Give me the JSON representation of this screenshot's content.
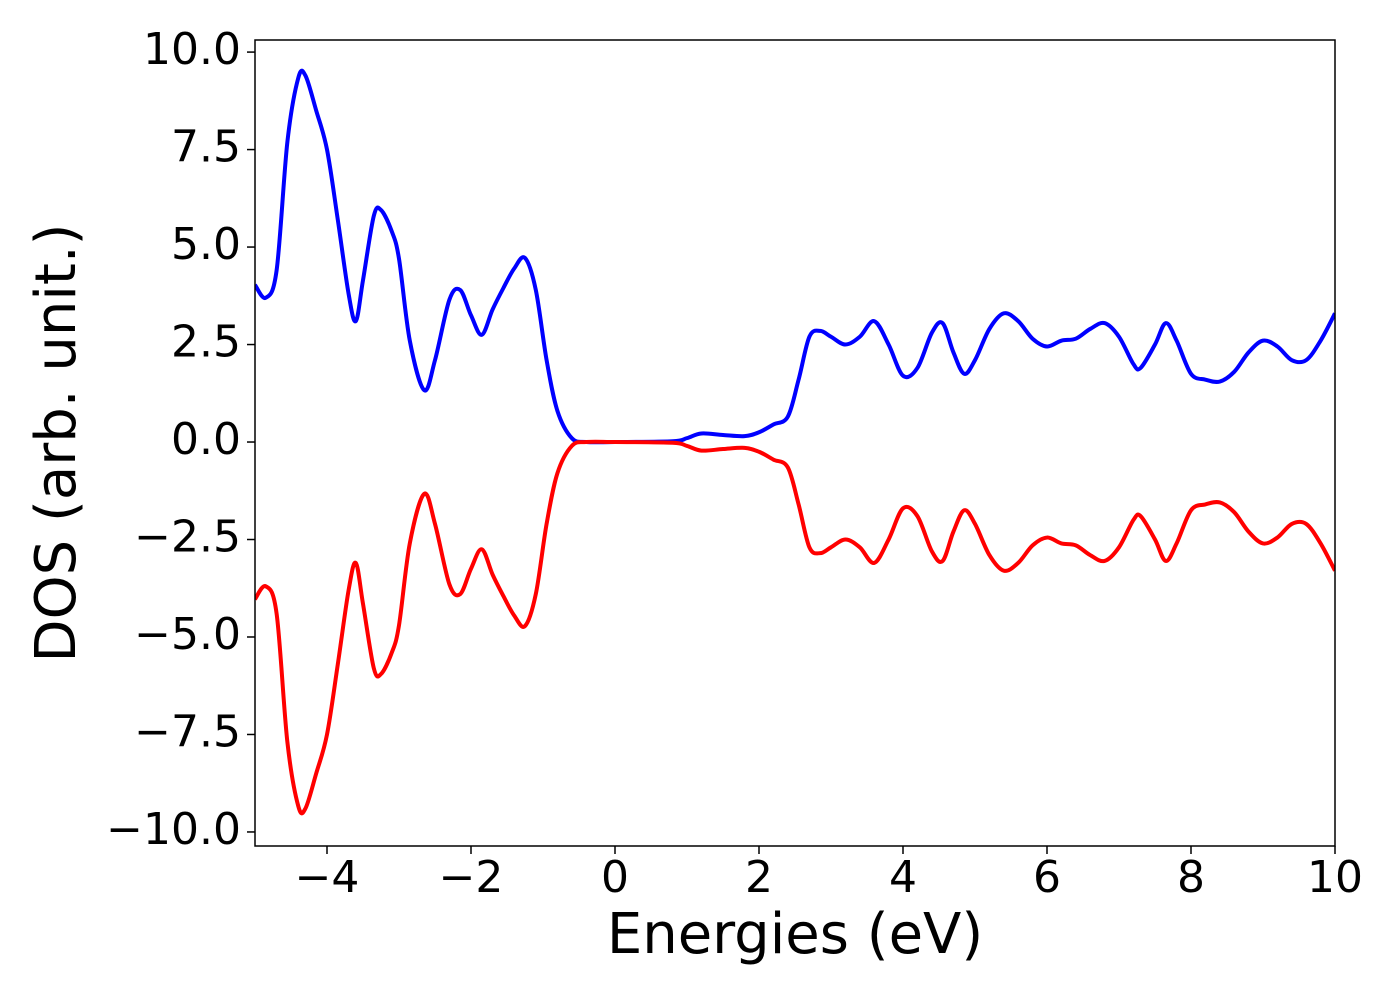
{
  "chart_data": {
    "type": "line",
    "x_label": "Energies (eV)",
    "y_label": "DOS (arb. unit.)",
    "x": [
      -5,
      -4.85,
      -4.7,
      -4.55,
      -4.4,
      -4.3,
      -4.15,
      -4.0,
      -3.85,
      -3.7,
      -3.6,
      -3.5,
      -3.35,
      -3.25,
      -3.1,
      -3.0,
      -2.85,
      -2.65,
      -2.5,
      -2.3,
      -2.15,
      -2.0,
      -1.85,
      -1.7,
      -1.55,
      -1.4,
      -1.25,
      -1.1,
      -0.95,
      -0.8,
      -0.6,
      -0.4,
      0,
      0.8,
      1.0,
      1.2,
      1.5,
      1.8,
      2.0,
      2.2,
      2.4,
      2.55,
      2.7,
      2.85,
      3.0,
      3.2,
      3.4,
      3.6,
      3.8,
      4.0,
      4.2,
      4.4,
      4.55,
      4.7,
      4.85,
      5.0,
      5.2,
      5.4,
      5.6,
      5.8,
      6.0,
      6.2,
      6.4,
      6.6,
      6.8,
      7.0,
      7.2,
      7.3,
      7.5,
      7.65,
      7.8,
      8.0,
      8.2,
      8.4,
      8.6,
      8.8,
      9.0,
      9.2,
      9.4,
      9.6,
      9.8,
      10
    ],
    "series": [
      {
        "color": "#0000ff",
        "values": [
          4.03,
          3.7,
          4.4,
          7.7,
          9.33,
          9.4,
          8.5,
          7.5,
          5.7,
          3.8,
          3.1,
          4.15,
          5.8,
          5.95,
          5.4,
          4.7,
          2.6,
          1.33,
          2.1,
          3.65,
          3.9,
          3.25,
          2.75,
          3.4,
          3.95,
          4.45,
          4.72,
          3.9,
          2.1,
          0.8,
          0.1,
          0,
          0,
          0.02,
          0.1,
          0.22,
          0.18,
          0.15,
          0.25,
          0.45,
          0.65,
          1.6,
          2.7,
          2.85,
          2.7,
          2.5,
          2.7,
          3.1,
          2.5,
          1.7,
          1.9,
          2.8,
          3.05,
          2.3,
          1.75,
          2.1,
          2.9,
          3.3,
          3.1,
          2.65,
          2.45,
          2.6,
          2.65,
          2.9,
          3.05,
          2.7,
          2.0,
          1.9,
          2.5,
          3.05,
          2.6,
          1.75,
          1.6,
          1.55,
          1.8,
          2.3,
          2.6,
          2.45,
          2.1,
          2.1,
          2.6,
          3.3
        ]
      },
      {
        "color": "#ff0000",
        "values": [
          -4.03,
          -3.7,
          -4.4,
          -7.7,
          -9.33,
          -9.4,
          -8.5,
          -7.5,
          -5.7,
          -3.8,
          -3.1,
          -4.15,
          -5.8,
          -5.95,
          -5.4,
          -4.7,
          -2.6,
          -1.33,
          -2.1,
          -3.65,
          -3.9,
          -3.25,
          -2.75,
          -3.4,
          -3.95,
          -4.45,
          -4.72,
          -3.9,
          -2.1,
          -0.8,
          -0.1,
          0,
          0,
          -0.02,
          -0.1,
          -0.22,
          -0.18,
          -0.15,
          -0.25,
          -0.45,
          -0.65,
          -1.6,
          -2.7,
          -2.85,
          -2.7,
          -2.5,
          -2.7,
          -3.1,
          -2.5,
          -1.7,
          -1.9,
          -2.8,
          -3.05,
          -2.3,
          -1.75,
          -2.1,
          -2.9,
          -3.3,
          -3.1,
          -2.65,
          -2.45,
          -2.6,
          -2.65,
          -2.9,
          -3.05,
          -2.7,
          -2.0,
          -1.9,
          -2.5,
          -3.05,
          -2.6,
          -1.75,
          -1.6,
          -1.55,
          -1.8,
          -2.3,
          -2.6,
          -2.45,
          -2.1,
          -2.1,
          -2.6,
          -3.3
        ]
      }
    ],
    "xlim": [
      -5,
      10
    ],
    "xticks": [
      {
        "value": -4,
        "label": "−4"
      },
      {
        "value": -2,
        "label": "−2"
      },
      0,
      2,
      4,
      6,
      8,
      10
    ],
    "ylim": [
      -10.36,
      10.31
    ],
    "yticks": [
      {
        "value": -10,
        "label": "−10.0"
      },
      {
        "value": -7.5,
        "label": "−7.5"
      },
      {
        "value": -5,
        "label": "−5.0"
      },
      {
        "value": -2.5,
        "label": "−2.5"
      },
      {
        "value": 0,
        "label": "0.0"
      },
      {
        "value": 2.5,
        "label": "2.5"
      },
      {
        "value": 5,
        "label": "5.0"
      },
      {
        "value": 7.5,
        "label": "7.5"
      },
      {
        "value": 10,
        "label": "10.0"
      }
    ]
  }
}
